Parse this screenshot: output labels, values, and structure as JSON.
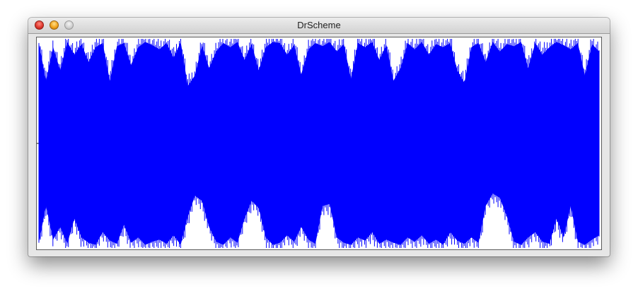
{
  "window": {
    "title": "DrScheme"
  },
  "chart_data": {
    "type": "area",
    "title": "",
    "xlabel": "",
    "ylabel": "",
    "series_color": "#0000ff",
    "ylim": [
      -1,
      1
    ],
    "envelope_upper": [
      0.96,
      0.6,
      0.92,
      0.7,
      0.97,
      0.85,
      0.95,
      0.78,
      0.92,
      0.96,
      0.6,
      0.93,
      0.96,
      0.75,
      0.92,
      0.97,
      0.94,
      0.9,
      0.96,
      0.82,
      0.97,
      0.55,
      0.65,
      0.94,
      0.72,
      0.88,
      0.96,
      0.92,
      0.97,
      0.8,
      0.95,
      0.7,
      0.92,
      0.97,
      0.96,
      0.85,
      0.94,
      0.66,
      0.9,
      0.96,
      0.93,
      0.97,
      0.88,
      0.95,
      0.62,
      0.96,
      0.92,
      0.97,
      0.8,
      0.94,
      0.6,
      0.72,
      0.96,
      0.9,
      0.97,
      0.85,
      0.95,
      0.92,
      0.96,
      0.7,
      0.58,
      0.92,
      0.96,
      0.78,
      0.97,
      0.88,
      0.95,
      0.93,
      0.97,
      0.72,
      0.96,
      0.85,
      0.92,
      0.97,
      0.94,
      0.9,
      0.96,
      0.65,
      0.95,
      0.88
    ],
    "envelope_lower": [
      -0.95,
      -0.6,
      -0.92,
      -0.8,
      -0.96,
      -0.72,
      -0.9,
      -0.95,
      -0.97,
      -0.85,
      -0.93,
      -0.96,
      -0.78,
      -0.95,
      -0.9,
      -0.97,
      -0.94,
      -0.92,
      -0.96,
      -0.88,
      -0.97,
      -0.7,
      -0.5,
      -0.55,
      -0.8,
      -0.94,
      -0.97,
      -0.9,
      -0.95,
      -0.72,
      -0.55,
      -0.62,
      -0.9,
      -0.97,
      -0.95,
      -0.88,
      -0.94,
      -0.8,
      -0.92,
      -0.96,
      -0.6,
      -0.58,
      -0.9,
      -0.95,
      -0.97,
      -0.9,
      -0.93,
      -0.85,
      -0.96,
      -0.92,
      -0.95,
      -0.97,
      -0.9,
      -0.94,
      -0.88,
      -0.96,
      -0.92,
      -0.97,
      -0.85,
      -0.93,
      -0.96,
      -0.9,
      -0.95,
      -0.6,
      -0.48,
      -0.52,
      -0.7,
      -0.94,
      -0.97,
      -0.9,
      -0.85,
      -0.94,
      -0.96,
      -0.72,
      -0.9,
      -0.6,
      -0.94,
      -0.97,
      -0.92,
      -0.88
    ]
  }
}
